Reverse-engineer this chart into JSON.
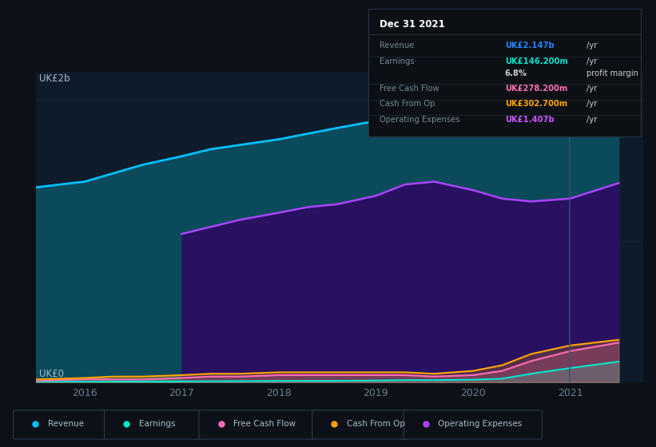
{
  "background_color": "#0d1117",
  "plot_bg_color": "#0d1b2a",
  "years": [
    2015.5,
    2016.0,
    2016.3,
    2016.6,
    2017.0,
    2017.3,
    2017.6,
    2018.0,
    2018.3,
    2018.6,
    2019.0,
    2019.3,
    2019.6,
    2020.0,
    2020.3,
    2020.6,
    2021.0,
    2021.5
  ],
  "revenue": [
    1.38,
    1.42,
    1.48,
    1.54,
    1.6,
    1.65,
    1.68,
    1.72,
    1.76,
    1.8,
    1.85,
    1.9,
    1.92,
    1.88,
    1.84,
    1.8,
    1.84,
    2.15
  ],
  "op_expenses_full": [
    0.0,
    0.0,
    0.0,
    0.0,
    1.05,
    1.1,
    1.15,
    1.2,
    1.24,
    1.26,
    1.32,
    1.4,
    1.42,
    1.36,
    1.3,
    1.28,
    1.3,
    1.41
  ],
  "free_cash_flow": [
    0.01,
    0.02,
    0.02,
    0.02,
    0.03,
    0.04,
    0.04,
    0.05,
    0.05,
    0.05,
    0.05,
    0.05,
    0.04,
    0.05,
    0.08,
    0.15,
    0.22,
    0.28
  ],
  "cash_from_op": [
    0.02,
    0.03,
    0.04,
    0.04,
    0.05,
    0.06,
    0.06,
    0.07,
    0.07,
    0.07,
    0.07,
    0.07,
    0.06,
    0.08,
    0.12,
    0.2,
    0.26,
    0.3
  ],
  "earnings": [
    0.003,
    0.003,
    0.004,
    0.005,
    0.006,
    0.007,
    0.008,
    0.009,
    0.01,
    0.01,
    0.012,
    0.015,
    0.015,
    0.018,
    0.025,
    0.06,
    0.1,
    0.146
  ],
  "revenue_color": "#00bfff",
  "op_expenses_color": "#aa44ff",
  "free_cash_flow_color": "#ff6eb4",
  "cash_from_op_color": "#ffa500",
  "earnings_color": "#00e5cc",
  "revenue_fill": "#0a4a5a",
  "op_expenses_fill": "#2a1060",
  "vline_x": 2021.0,
  "ylim": [
    0,
    2.2
  ],
  "xlim": [
    2015.5,
    2021.75
  ],
  "ylabel": "UK£2b",
  "y0_label": "UK£0",
  "grid_color": "#1e2d3d",
  "tick_color": "#6a7f90",
  "xticks": [
    2016,
    2017,
    2018,
    2019,
    2020,
    2021
  ],
  "legend_items": [
    {
      "label": "Revenue",
      "color": "#00bfff"
    },
    {
      "label": "Earnings",
      "color": "#00e5cc"
    },
    {
      "label": "Free Cash Flow",
      "color": "#ff6eb4"
    },
    {
      "label": "Cash From Op",
      "color": "#ffa500"
    },
    {
      "label": "Operating Expenses",
      "color": "#aa44ff"
    }
  ],
  "tooltip": {
    "title": "Dec 31 2021",
    "rows": [
      {
        "label": "Revenue",
        "value": "UK£2.147b",
        "unit": "/yr",
        "value_color": "#2288ff"
      },
      {
        "label": "Earnings",
        "value": "UK£146.200m",
        "unit": "/yr",
        "value_color": "#00e5cc"
      },
      {
        "label": "",
        "value": "6.8%",
        "unit": "profit margin",
        "value_color": "#cccccc"
      },
      {
        "label": "Free Cash Flow",
        "value": "UK£278.200m",
        "unit": "/yr",
        "value_color": "#ff6eb4"
      },
      {
        "label": "Cash From Op",
        "value": "UK£302.700m",
        "unit": "/yr",
        "value_color": "#ffa500"
      },
      {
        "label": "Operating Expenses",
        "value": "UK£1.407b",
        "unit": "/yr",
        "value_color": "#cc55ff"
      }
    ],
    "bg_color": "#0c1015",
    "border_color": "#2a3545",
    "title_color": "#ffffff",
    "label_color": "#778899",
    "text_color": "#cccccc"
  }
}
